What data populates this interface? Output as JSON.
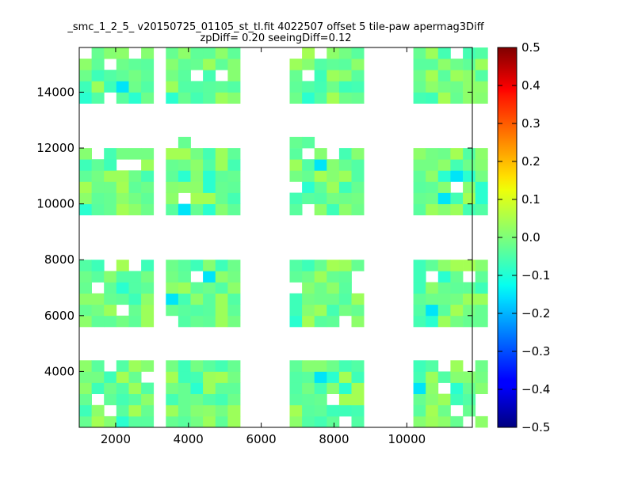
{
  "chart_data": {
    "type": "heatmap",
    "title": "_smc_1_2_5_ v20150725_01105_st_tl.fit 4022507 offset 5 tile-paw apermag3Diff",
    "subtitle": "zpDiff= 0.20 seeingDiff=0.12",
    "xlabel": "",
    "ylabel": "",
    "xlim": [
      1000,
      11800
    ],
    "ylim": [
      2000,
      15600
    ],
    "x_ticks": [
      2000,
      4000,
      6000,
      8000,
      10000
    ],
    "y_ticks": [
      4000,
      6000,
      8000,
      10000,
      12000,
      14000
    ],
    "colorbar": {
      "range": [
        -0.5,
        0.5
      ],
      "colormap": "jet",
      "ticks": [
        "0.5",
        "0.4",
        "0.3",
        "0.2",
        "0.1",
        "0.0",
        "−0.1",
        "−0.2",
        "−0.3",
        "−0.4",
        "−0.5"
      ]
    },
    "cell_size": [
      340,
      400
    ],
    "row_y": [
      2200,
      2600,
      3000,
      3400,
      3800,
      4200,
      5800,
      6200,
      6600,
      7000,
      7400,
      7800,
      9800,
      10200,
      10600,
      11000,
      11400,
      11800,
      12200,
      13800,
      14200,
      14600,
      15000,
      15400
    ],
    "column_groups": [
      {
        "x_start": 1170,
        "count": 6
      },
      {
        "x_start": 3550,
        "count": 6
      },
      {
        "x_start": 6950,
        "count": 6
      },
      {
        "x_start": 10350,
        "count": 6
      }
    ],
    "grid": false,
    "legend": "none"
  }
}
